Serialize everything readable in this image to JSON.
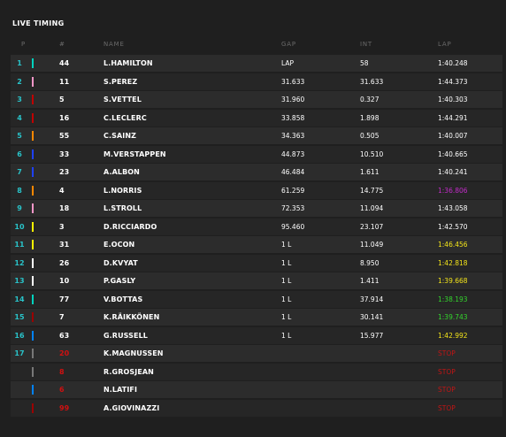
{
  "title": "LIVE TIMING",
  "headers": {
    "p": "P",
    "num": "#",
    "name": "NAME",
    "gap": "GAP",
    "int": "INT",
    "lap": "LAP"
  },
  "colors": {
    "accent_position": "#29c3c9",
    "lap_purple": "#c22bc8",
    "lap_yellow": "#f3e41a",
    "lap_green": "#33d62c",
    "stop_red": "#c01515"
  },
  "rows": [
    {
      "pos": "1",
      "num": "44",
      "name": "L.HAMILTON",
      "gap": "LAP",
      "int": "58",
      "lap": "1:40.248",
      "lap_color": "white",
      "team_color": "#00d2be"
    },
    {
      "pos": "2",
      "num": "11",
      "name": "S.PEREZ",
      "gap": "31.633",
      "int": "31.633",
      "lap": "1:44.373",
      "lap_color": "white",
      "team_color": "#f596c8"
    },
    {
      "pos": "3",
      "num": "5",
      "name": "S.VETTEL",
      "gap": "31.960",
      "int": "0.327",
      "lap": "1:40.303",
      "lap_color": "white",
      "team_color": "#c00000"
    },
    {
      "pos": "4",
      "num": "16",
      "name": "C.LECLERC",
      "gap": "33.858",
      "int": "1.898",
      "lap": "1:44.291",
      "lap_color": "white",
      "team_color": "#c00000"
    },
    {
      "pos": "5",
      "num": "55",
      "name": "C.SAINZ",
      "gap": "34.363",
      "int": "0.505",
      "lap": "1:40.007",
      "lap_color": "white",
      "team_color": "#ff8700"
    },
    {
      "pos": "6",
      "num": "33",
      "name": "M.VERSTAPPEN",
      "gap": "44.873",
      "int": "10.510",
      "lap": "1:40.665",
      "lap_color": "white",
      "team_color": "#1e41ff"
    },
    {
      "pos": "7",
      "num": "23",
      "name": "A.ALBON",
      "gap": "46.484",
      "int": "1.611",
      "lap": "1:40.241",
      "lap_color": "white",
      "team_color": "#1e41ff"
    },
    {
      "pos": "8",
      "num": "4",
      "name": "L.NORRIS",
      "gap": "61.259",
      "int": "14.775",
      "lap": "1:36.806",
      "lap_color": "purple",
      "team_color": "#ff8700"
    },
    {
      "pos": "9",
      "num": "18",
      "name": "L.STROLL",
      "gap": "72.353",
      "int": "11.094",
      "lap": "1:43.058",
      "lap_color": "white",
      "team_color": "#f596c8"
    },
    {
      "pos": "10",
      "num": "3",
      "name": "D.RICCIARDO",
      "gap": "95.460",
      "int": "23.107",
      "lap": "1:42.570",
      "lap_color": "white",
      "team_color": "#fff500"
    },
    {
      "pos": "11",
      "num": "31",
      "name": "E.OCON",
      "gap": "1 L",
      "int": "11.049",
      "lap": "1:46.456",
      "lap_color": "yellow",
      "team_color": "#fff500"
    },
    {
      "pos": "12",
      "num": "26",
      "name": "D.KVYAT",
      "gap": "1 L",
      "int": "8.950",
      "lap": "1:42.818",
      "lap_color": "yellow",
      "team_color": "#ffffff"
    },
    {
      "pos": "13",
      "num": "10",
      "name": "P.GASLY",
      "gap": "1 L",
      "int": "1.411",
      "lap": "1:39.668",
      "lap_color": "yellow",
      "team_color": "#ffffff"
    },
    {
      "pos": "14",
      "num": "77",
      "name": "V.BOTTAS",
      "gap": "1 L",
      "int": "37.914",
      "lap": "1:38.193",
      "lap_color": "green",
      "team_color": "#00d2be"
    },
    {
      "pos": "15",
      "num": "7",
      "name": "K.RÄIKKÖNEN",
      "gap": "1 L",
      "int": "30.141",
      "lap": "1:39.743",
      "lap_color": "green",
      "team_color": "#9b0000"
    },
    {
      "pos": "16",
      "num": "63",
      "name": "G.RUSSELL",
      "gap": "1 L",
      "int": "15.977",
      "lap": "1:42.992",
      "lap_color": "yellow",
      "team_color": "#0082fa"
    },
    {
      "pos": "17",
      "num": "20",
      "name": "K.MAGNUSSEN",
      "gap": "",
      "int": "",
      "lap": "STOP",
      "lap_color": "red",
      "team_color": "#787878",
      "out": true
    },
    {
      "pos": "",
      "num": "8",
      "name": "R.GROSJEAN",
      "gap": "",
      "int": "",
      "lap": "STOP",
      "lap_color": "red",
      "team_color": "#787878",
      "out": true
    },
    {
      "pos": "",
      "num": "6",
      "name": "N.LATIFI",
      "gap": "",
      "int": "",
      "lap": "STOP",
      "lap_color": "red",
      "team_color": "#0082fa",
      "out": true
    },
    {
      "pos": "",
      "num": "99",
      "name": "A.GIOVINAZZI",
      "gap": "",
      "int": "",
      "lap": "STOP",
      "lap_color": "red",
      "team_color": "#9b0000",
      "out": true
    }
  ]
}
